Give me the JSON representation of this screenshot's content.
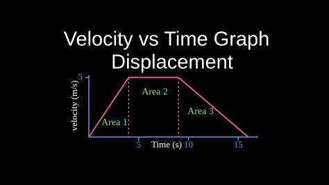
{
  "chart_data": {
    "type": "line",
    "title": "Velocity vs Time Graph",
    "subtitle": "Displacement",
    "x_label": "Time (s)",
    "y_label": "velocity (m/s)",
    "x": [
      0,
      4,
      9,
      16
    ],
    "series": [
      {
        "color": "#e05a8c",
        "values": [
          0,
          5,
          5,
          0
        ]
      }
    ],
    "xlim": [
      0,
      17
    ],
    "ylim": [
      0,
      5.2
    ],
    "xticks": [
      5,
      10,
      15
    ],
    "yticks": [
      5
    ],
    "axis_color": "#6f8fd8",
    "annotations": [
      "Area 1",
      "Area 2",
      "Area 3"
    ],
    "annotation_color": "#86e06e"
  }
}
